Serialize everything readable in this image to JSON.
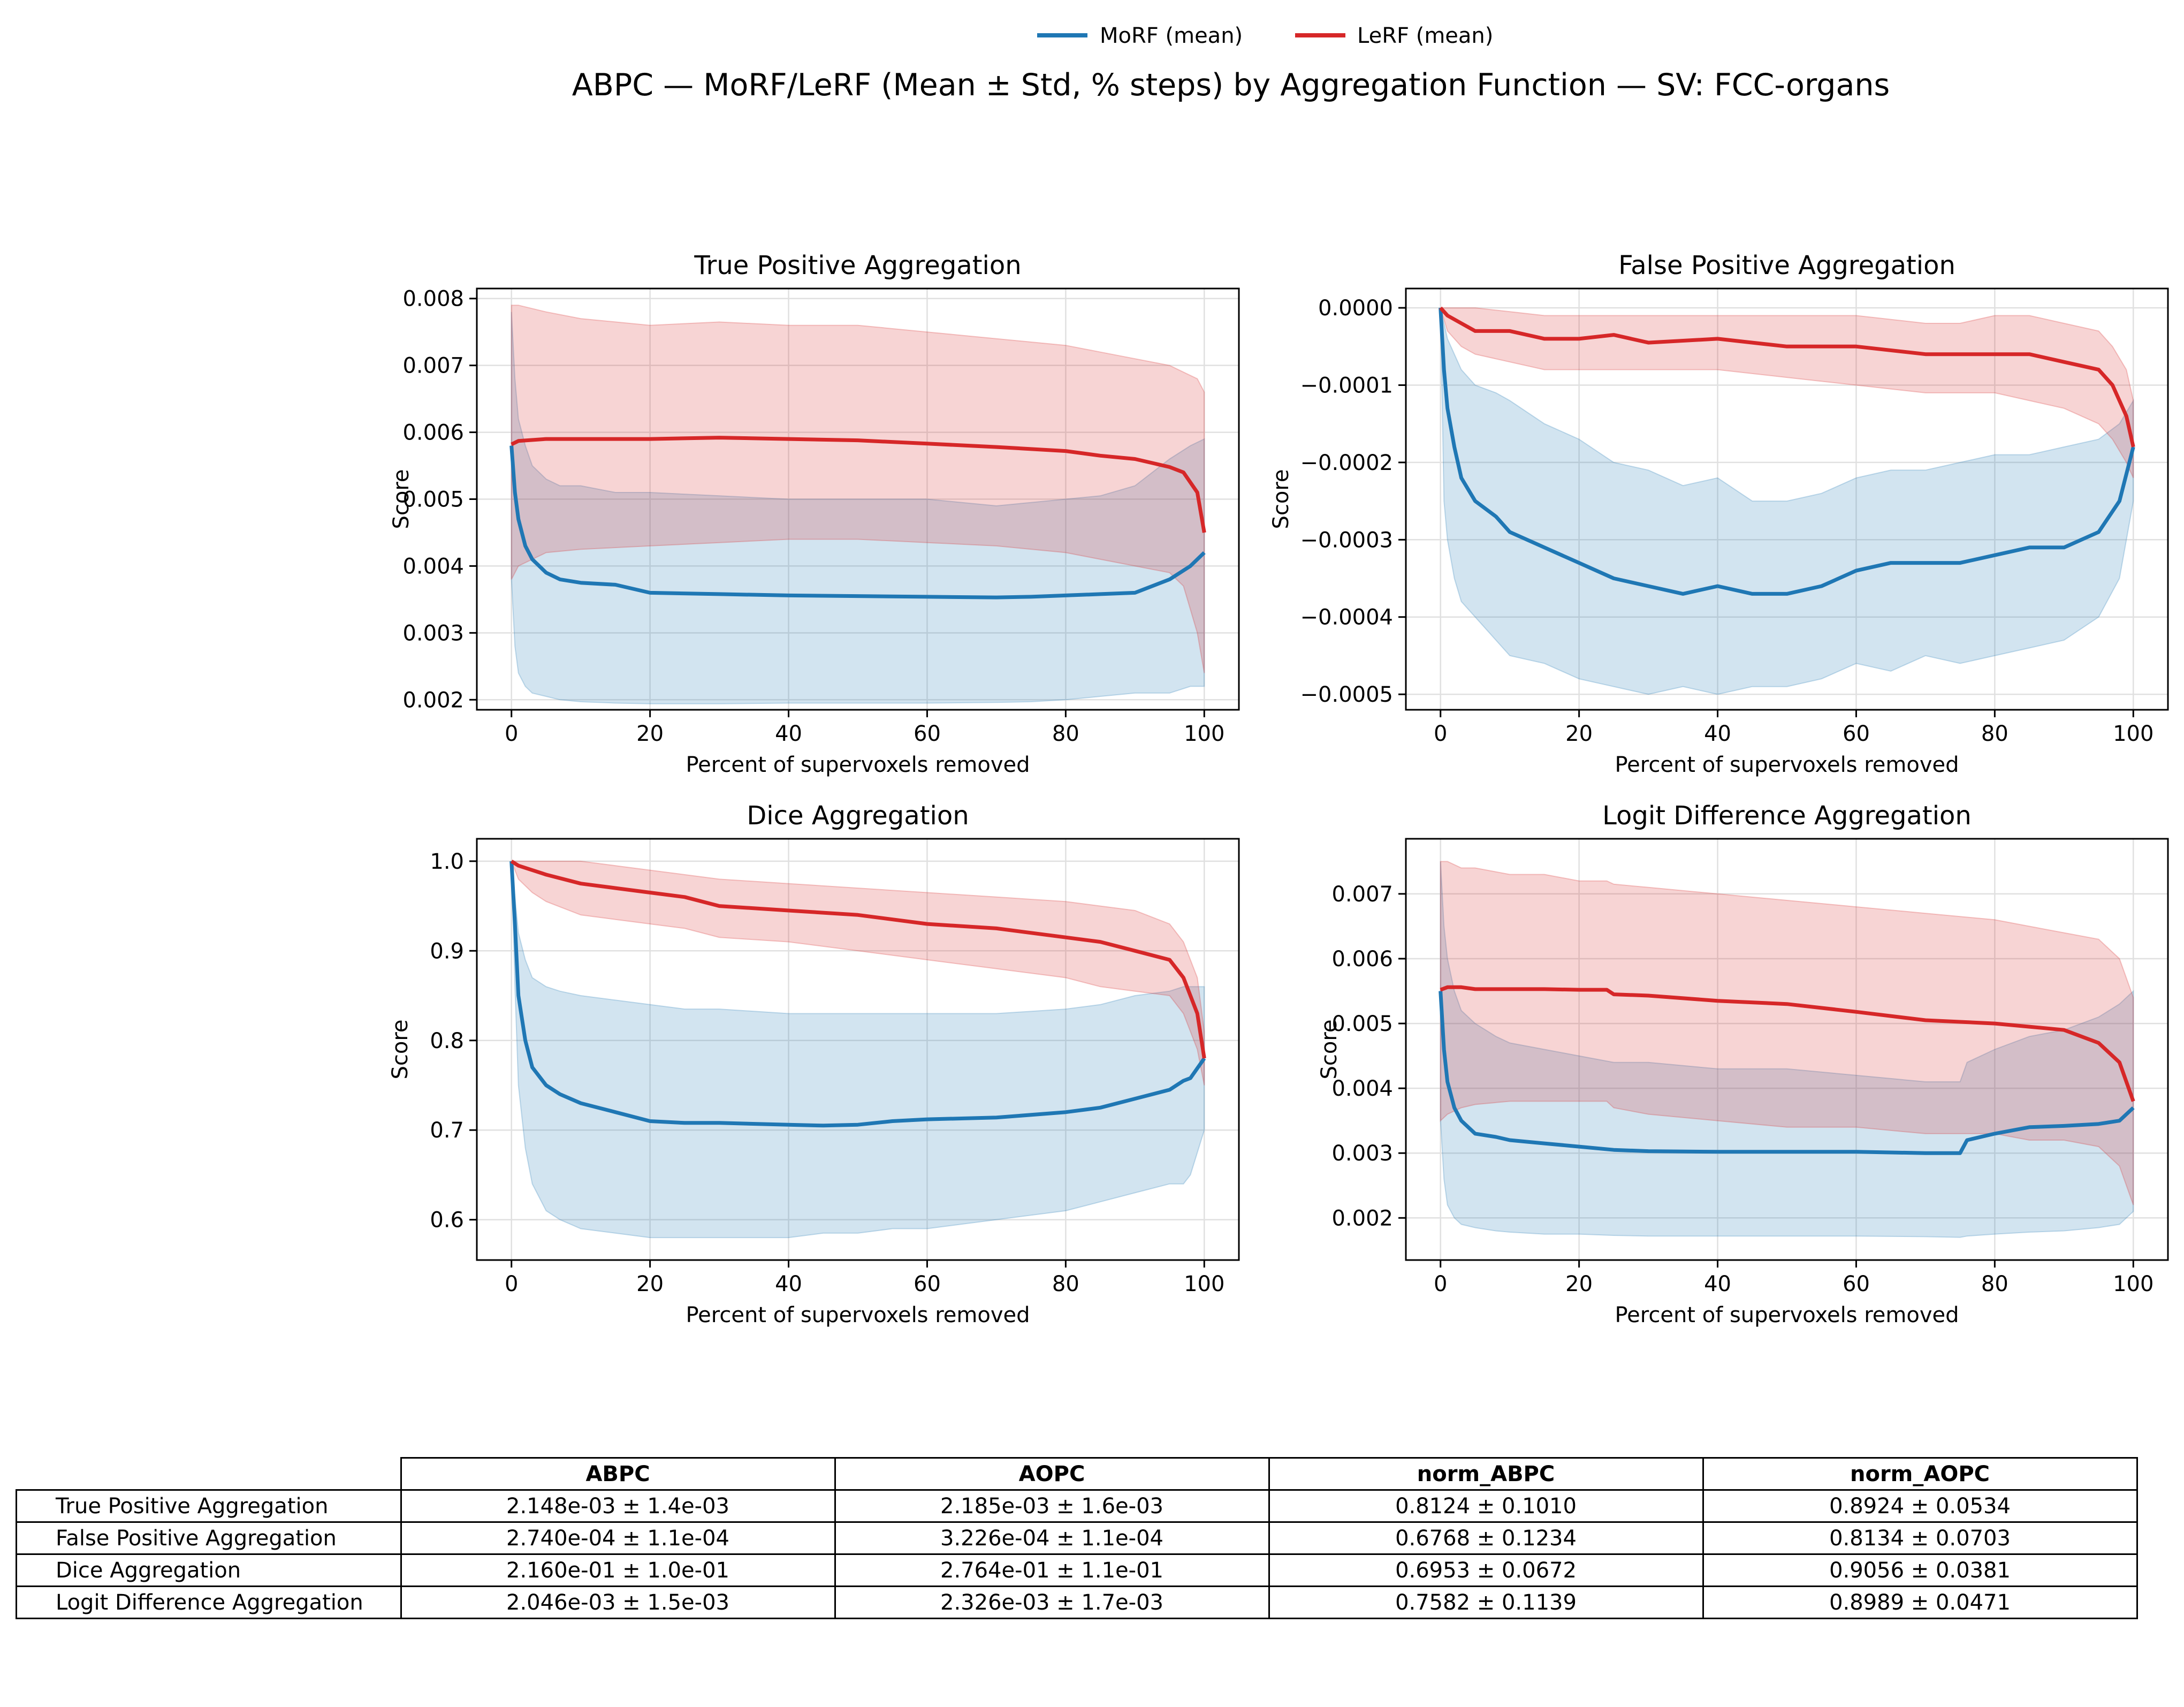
{
  "figure": {
    "title": "ABPC — MoRF/LeRF (Mean ± Std, % steps) by Aggregation Function — SV: FCC-organs",
    "legend": {
      "placement": "top-center",
      "entries": [
        {
          "label": "MoRF (mean)",
          "color": "#1f77b4"
        },
        {
          "label": "LeRF (mean)",
          "color": "#d62728"
        }
      ]
    }
  },
  "colors": {
    "morf": "#1f77b4",
    "lerf": "#d62728",
    "grid": "#e0e0e0"
  },
  "chart_data": [
    {
      "type": "line",
      "title": "True Positive Aggregation",
      "xlabel": "Percent of supervoxels removed",
      "ylabel": "Score",
      "xlim": [
        -5,
        105
      ],
      "ylim": [
        0.00185,
        0.00815
      ],
      "xticks": [
        0,
        20,
        40,
        60,
        80,
        100
      ],
      "xtick_labels": [
        "0",
        "20",
        "40",
        "60",
        "80",
        "100"
      ],
      "yticks": [
        0.002,
        0.003,
        0.004,
        0.005,
        0.006,
        0.007,
        0.008
      ],
      "ytick_labels": [
        "0.002",
        "0.003",
        "0.004",
        "0.005",
        "0.006",
        "0.007",
        "0.008"
      ],
      "grid": true,
      "series": [
        {
          "name": "MoRF (mean)",
          "color": "#1f77b4",
          "x": [
            0,
            0.5,
            1,
            2,
            3,
            5,
            7,
            10,
            15,
            20,
            30,
            40,
            50,
            60,
            70,
            75,
            80,
            85,
            90,
            95,
            98,
            100
          ],
          "y": [
            0.0058,
            0.0051,
            0.0047,
            0.0043,
            0.0041,
            0.0039,
            0.0038,
            0.00375,
            0.00372,
            0.0036,
            0.00358,
            0.00356,
            0.00355,
            0.00354,
            0.00353,
            0.00354,
            0.00356,
            0.00358,
            0.0036,
            0.0038,
            0.004,
            0.0042
          ],
          "y_low": [
            0.0038,
            0.0028,
            0.0024,
            0.0022,
            0.0021,
            0.00205,
            0.002,
            0.00197,
            0.00195,
            0.00194,
            0.00194,
            0.00195,
            0.00195,
            0.00195,
            0.00196,
            0.00197,
            0.002,
            0.00205,
            0.0021,
            0.0021,
            0.0022,
            0.0022
          ],
          "y_high": [
            0.0078,
            0.0068,
            0.0062,
            0.0058,
            0.0055,
            0.0053,
            0.0052,
            0.0052,
            0.0051,
            0.0051,
            0.00505,
            0.005,
            0.005,
            0.005,
            0.0049,
            0.00495,
            0.005,
            0.00505,
            0.0052,
            0.0056,
            0.0058,
            0.0059
          ]
        },
        {
          "name": "LeRF (mean)",
          "color": "#d62728",
          "x": [
            0,
            1,
            5,
            10,
            20,
            30,
            40,
            50,
            60,
            70,
            80,
            85,
            90,
            95,
            97,
            99,
            100
          ],
          "y": [
            0.00582,
            0.00587,
            0.0059,
            0.0059,
            0.0059,
            0.00592,
            0.0059,
            0.00588,
            0.00583,
            0.00578,
            0.00572,
            0.00565,
            0.0056,
            0.00548,
            0.0054,
            0.0051,
            0.0045
          ],
          "y_low": [
            0.0038,
            0.004,
            0.0042,
            0.00425,
            0.0043,
            0.00435,
            0.0044,
            0.0044,
            0.00435,
            0.0043,
            0.0042,
            0.0041,
            0.004,
            0.0039,
            0.0037,
            0.003,
            0.0024
          ],
          "y_high": [
            0.0079,
            0.0079,
            0.0078,
            0.0077,
            0.0076,
            0.00765,
            0.0076,
            0.0076,
            0.0075,
            0.0074,
            0.0073,
            0.0072,
            0.0071,
            0.007,
            0.0069,
            0.0068,
            0.0066
          ]
        }
      ]
    },
    {
      "type": "line",
      "title": "False Positive Aggregation",
      "xlabel": "Percent of supervoxels removed",
      "ylabel": "Score",
      "xlim": [
        -5,
        105
      ],
      "ylim": [
        -0.00052,
        2.5e-05
      ],
      "xticks": [
        0,
        20,
        40,
        60,
        80,
        100
      ],
      "xtick_labels": [
        "0",
        "20",
        "40",
        "60",
        "80",
        "100"
      ],
      "yticks": [
        0,
        -0.0001,
        -0.0002,
        -0.0003,
        -0.0004,
        -0.0005
      ],
      "ytick_labels": [
        "0.0000",
        "−0.0001",
        "−0.0002",
        "−0.0003",
        "−0.0004",
        "−0.0005"
      ],
      "grid": true,
      "series": [
        {
          "name": "MoRF (mean)",
          "color": "#1f77b4",
          "x": [
            0,
            0.5,
            1,
            2,
            3,
            5,
            8,
            10,
            15,
            20,
            25,
            30,
            35,
            40,
            45,
            50,
            55,
            60,
            65,
            70,
            75,
            80,
            85,
            90,
            95,
            98,
            100
          ],
          "y": [
            0,
            -8e-05,
            -0.00013,
            -0.00018,
            -0.00022,
            -0.00025,
            -0.00027,
            -0.00029,
            -0.00031,
            -0.00033,
            -0.00035,
            -0.00036,
            -0.00037,
            -0.00036,
            -0.00037,
            -0.00037,
            -0.00036,
            -0.00034,
            -0.00033,
            -0.00033,
            -0.00033,
            -0.00032,
            -0.00031,
            -0.00031,
            -0.00029,
            -0.00025,
            -0.00018
          ],
          "y_low": [
            0,
            -0.00025,
            -0.0003,
            -0.00035,
            -0.00038,
            -0.0004,
            -0.00043,
            -0.00045,
            -0.00046,
            -0.00048,
            -0.00049,
            -0.0005,
            -0.00049,
            -0.0005,
            -0.00049,
            -0.00049,
            -0.00048,
            -0.00046,
            -0.00047,
            -0.00045,
            -0.00046,
            -0.00045,
            -0.00044,
            -0.00043,
            -0.0004,
            -0.00035,
            -0.00025
          ],
          "y_high": [
            0,
            -2e-05,
            -4e-05,
            -6e-05,
            -8e-05,
            -0.0001,
            -0.00011,
            -0.00012,
            -0.00015,
            -0.00017,
            -0.0002,
            -0.00021,
            -0.00023,
            -0.00022,
            -0.00025,
            -0.00025,
            -0.00024,
            -0.00022,
            -0.00021,
            -0.00021,
            -0.0002,
            -0.00019,
            -0.00019,
            -0.00018,
            -0.00017,
            -0.00015,
            -0.00012
          ]
        },
        {
          "name": "LeRF (mean)",
          "color": "#d62728",
          "x": [
            0,
            1,
            3,
            5,
            10,
            15,
            20,
            25,
            30,
            40,
            50,
            60,
            70,
            75,
            80,
            85,
            90,
            95,
            97,
            99,
            100
          ],
          "y": [
            0,
            -1e-05,
            -2e-05,
            -3e-05,
            -3e-05,
            -4e-05,
            -4e-05,
            -3.5e-05,
            -4.5e-05,
            -4e-05,
            -5e-05,
            -5e-05,
            -6e-05,
            -6e-05,
            -6e-05,
            -6e-05,
            -7e-05,
            -8e-05,
            -0.0001,
            -0.00014,
            -0.00018
          ],
          "y_low": [
            0,
            -3e-05,
            -5e-05,
            -6e-05,
            -7e-05,
            -8e-05,
            -8e-05,
            -8e-05,
            -8e-05,
            -8e-05,
            -9e-05,
            -0.0001,
            -0.00011,
            -0.00011,
            -0.00011,
            -0.00012,
            -0.00013,
            -0.00015,
            -0.00017,
            -0.0002,
            -0.00022
          ],
          "y_high": [
            0,
            0,
            0,
            0,
            -5e-06,
            -1e-05,
            -1e-05,
            -1e-05,
            -1e-05,
            -1e-05,
            -1e-05,
            -1e-05,
            -2e-05,
            -2e-05,
            -1e-05,
            -1e-05,
            -2e-05,
            -3e-05,
            -5e-05,
            -8e-05,
            -0.00012
          ]
        }
      ]
    },
    {
      "type": "line",
      "title": "Dice Aggregation",
      "xlabel": "Percent of supervoxels removed",
      "ylabel": "Score",
      "xlim": [
        -5,
        105
      ],
      "ylim": [
        0.555,
        1.025
      ],
      "xticks": [
        0,
        20,
        40,
        60,
        80,
        100
      ],
      "xtick_labels": [
        "0",
        "20",
        "40",
        "60",
        "80",
        "100"
      ],
      "yticks": [
        0.6,
        0.7,
        0.8,
        0.9,
        1.0
      ],
      "ytick_labels": [
        "0.6",
        "0.7",
        "0.8",
        "0.9",
        "1.0"
      ],
      "grid": true,
      "series": [
        {
          "name": "MoRF (mean)",
          "color": "#1f77b4",
          "x": [
            0,
            0.5,
            1,
            2,
            3,
            5,
            7,
            10,
            15,
            20,
            25,
            30,
            40,
            45,
            50,
            55,
            60,
            70,
            80,
            85,
            90,
            95,
            97,
            98,
            100
          ],
          "y": [
            1.0,
            0.93,
            0.85,
            0.8,
            0.77,
            0.75,
            0.74,
            0.73,
            0.72,
            0.71,
            0.708,
            0.708,
            0.706,
            0.705,
            0.706,
            0.71,
            0.712,
            0.714,
            0.72,
            0.725,
            0.735,
            0.745,
            0.755,
            0.758,
            0.78
          ],
          "y_low": [
            1.0,
            0.86,
            0.75,
            0.68,
            0.64,
            0.61,
            0.6,
            0.59,
            0.585,
            0.58,
            0.58,
            0.58,
            0.58,
            0.585,
            0.585,
            0.59,
            0.59,
            0.6,
            0.61,
            0.62,
            0.63,
            0.64,
            0.64,
            0.65,
            0.7
          ],
          "y_high": [
            1.0,
            0.96,
            0.92,
            0.89,
            0.87,
            0.86,
            0.855,
            0.85,
            0.845,
            0.84,
            0.835,
            0.835,
            0.83,
            0.83,
            0.83,
            0.83,
            0.83,
            0.83,
            0.835,
            0.84,
            0.85,
            0.855,
            0.86,
            0.86,
            0.86
          ]
        },
        {
          "name": "LeRF (mean)",
          "color": "#d62728",
          "x": [
            0,
            1,
            3,
            5,
            10,
            15,
            20,
            25,
            30,
            40,
            50,
            60,
            70,
            80,
            85,
            90,
            95,
            97,
            99,
            100
          ],
          "y": [
            1.0,
            0.995,
            0.99,
            0.985,
            0.975,
            0.97,
            0.965,
            0.96,
            0.95,
            0.945,
            0.94,
            0.93,
            0.925,
            0.915,
            0.91,
            0.9,
            0.89,
            0.87,
            0.83,
            0.78
          ],
          "y_low": [
            1.0,
            0.98,
            0.965,
            0.955,
            0.94,
            0.935,
            0.93,
            0.925,
            0.915,
            0.91,
            0.9,
            0.89,
            0.88,
            0.87,
            0.86,
            0.855,
            0.85,
            0.83,
            0.79,
            0.75
          ],
          "y_high": [
            1.0,
            1.0,
            1.0,
            1.0,
            1.0,
            0.995,
            0.99,
            0.985,
            0.98,
            0.975,
            0.97,
            0.965,
            0.96,
            0.955,
            0.95,
            0.945,
            0.93,
            0.91,
            0.87,
            0.81
          ]
        }
      ]
    },
    {
      "type": "line",
      "title": "Logit Difference Aggregation",
      "xlabel": "Percent of supervoxels removed",
      "ylabel": "Score",
      "xlim": [
        -5,
        105
      ],
      "ylim": [
        0.00135,
        0.00785
      ],
      "xticks": [
        0,
        20,
        40,
        60,
        80,
        100
      ],
      "xtick_labels": [
        "0",
        "20",
        "40",
        "60",
        "80",
        "100"
      ],
      "yticks": [
        0.002,
        0.003,
        0.004,
        0.005,
        0.006,
        0.007
      ],
      "ytick_labels": [
        "0.002",
        "0.003",
        "0.004",
        "0.005",
        "0.006",
        "0.007"
      ],
      "grid": true,
      "series": [
        {
          "name": "MoRF (mean)",
          "color": "#1f77b4",
          "x": [
            0,
            0.5,
            1,
            2,
            3,
            5,
            8,
            10,
            15,
            20,
            25,
            30,
            40,
            50,
            60,
            70,
            75,
            76,
            80,
            85,
            90,
            95,
            98,
            100
          ],
          "y": [
            0.0055,
            0.0046,
            0.0041,
            0.0037,
            0.0035,
            0.0033,
            0.00325,
            0.0032,
            0.00315,
            0.0031,
            0.00305,
            0.00303,
            0.00302,
            0.00302,
            0.00302,
            0.003,
            0.003,
            0.0032,
            0.0033,
            0.0034,
            0.00342,
            0.00345,
            0.0035,
            0.0037
          ],
          "y_low": [
            0.0035,
            0.0026,
            0.0022,
            0.002,
            0.0019,
            0.00185,
            0.0018,
            0.00178,
            0.00175,
            0.00175,
            0.00173,
            0.00172,
            0.00172,
            0.00172,
            0.00172,
            0.00171,
            0.0017,
            0.00172,
            0.00175,
            0.00178,
            0.0018,
            0.00185,
            0.0019,
            0.0021
          ],
          "y_high": [
            0.0075,
            0.0065,
            0.006,
            0.0055,
            0.0052,
            0.005,
            0.0048,
            0.0047,
            0.0046,
            0.0045,
            0.0044,
            0.0044,
            0.0043,
            0.0043,
            0.0042,
            0.0041,
            0.0041,
            0.0044,
            0.0046,
            0.0048,
            0.0049,
            0.0051,
            0.0053,
            0.0055
          ]
        },
        {
          "name": "LeRF (mean)",
          "color": "#d62728",
          "x": [
            0,
            1,
            3,
            5,
            10,
            15,
            20,
            24,
            25,
            30,
            40,
            50,
            60,
            70,
            80,
            85,
            90,
            95,
            98,
            100
          ],
          "y": [
            0.00552,
            0.00556,
            0.00556,
            0.00553,
            0.00553,
            0.00553,
            0.00552,
            0.00552,
            0.00545,
            0.00543,
            0.00535,
            0.0053,
            0.00518,
            0.00505,
            0.005,
            0.00495,
            0.0049,
            0.0047,
            0.0044,
            0.0038
          ],
          "y_low": [
            0.0035,
            0.0036,
            0.0037,
            0.00375,
            0.0038,
            0.0038,
            0.0038,
            0.0038,
            0.0037,
            0.0036,
            0.0035,
            0.0034,
            0.0034,
            0.0033,
            0.0033,
            0.0032,
            0.0032,
            0.0031,
            0.0028,
            0.0022
          ],
          "y_high": [
            0.0075,
            0.0075,
            0.0074,
            0.0074,
            0.0073,
            0.0073,
            0.0072,
            0.0072,
            0.00715,
            0.0071,
            0.007,
            0.0069,
            0.0068,
            0.0067,
            0.0066,
            0.0065,
            0.0064,
            0.0063,
            0.006,
            0.0054
          ]
        }
      ]
    }
  ],
  "table": {
    "columns": [
      "ABPC",
      "AOPC",
      "norm_ABPC",
      "norm_AOPC"
    ],
    "rows": [
      {
        "label": "True Positive Aggregation",
        "values": [
          "2.148e-03 ± 1.4e-03",
          "2.185e-03 ± 1.6e-03",
          "0.8124 ± 0.1010",
          "0.8924 ± 0.0534"
        ]
      },
      {
        "label": "False Positive Aggregation",
        "values": [
          "2.740e-04 ± 1.1e-04",
          "3.226e-04 ± 1.1e-04",
          "0.6768 ± 0.1234",
          "0.8134 ± 0.0703"
        ]
      },
      {
        "label": "Dice Aggregation",
        "values": [
          "2.160e-01 ± 1.0e-01",
          "2.764e-01 ± 1.1e-01",
          "0.6953 ± 0.0672",
          "0.9056 ± 0.0381"
        ]
      },
      {
        "label": "Logit Difference Aggregation",
        "values": [
          "2.046e-03 ± 1.5e-03",
          "2.326e-03 ± 1.7e-03",
          "0.7582 ± 0.1139",
          "0.8989 ± 0.0471"
        ]
      }
    ]
  }
}
